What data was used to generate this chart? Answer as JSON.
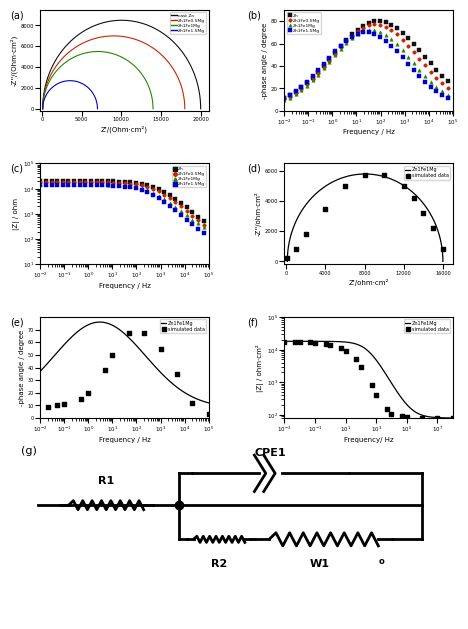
{
  "colors": {
    "Zn": "#111111",
    "ZnFe0.5Mg": "#cc2200",
    "ZnFe1Mg": "#228800",
    "ZnFe1.5Mg": "#0000cc"
  },
  "legend_a": [
    "cast Zn",
    "Zn1Fe0.5Mg",
    "Zn1Fe1Mg",
    "Zn1Fe1.5Mg"
  ],
  "legend_bcd": [
    "Zn",
    "Zn1Fe0.5Mg",
    "Zn1Fe1Mg",
    "Zn1Fe1.5Mg"
  ],
  "subplot_labels": [
    "(a)",
    "(b)",
    "(c)",
    "(d)",
    "(e)",
    "(f)",
    "(g)"
  ]
}
